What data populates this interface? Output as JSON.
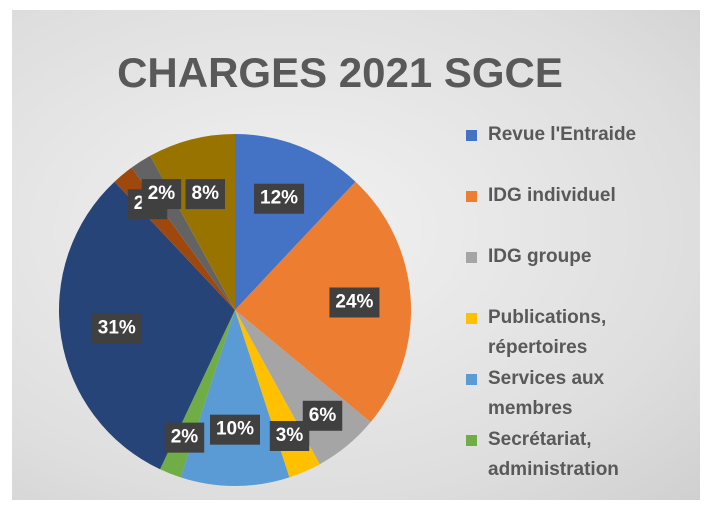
{
  "chart_data": {
    "type": "pie",
    "title": "CHARGES 2021 SGCE",
    "categories": [
      "Revue l'Entraide",
      "IDG individuel",
      "IDG groupe",
      "Publications, répertoires",
      "Services aux membres",
      "Secrétariat, administration",
      null,
      null,
      null,
      null
    ],
    "values": [
      12,
      24,
      6,
      3,
      10,
      2,
      31,
      2,
      2,
      8
    ],
    "value_labels": [
      "12%",
      "24%",
      "6%",
      "3%",
      "10%",
      "2%",
      "31%",
      "2%",
      "2%",
      "8%"
    ],
    "colors": [
      "#4472c4",
      "#ed7d31",
      "#a5a5a5",
      "#ffc000",
      "#5b9bd5",
      "#70ad47",
      "#264478",
      "#9e480e",
      "#636363",
      "#997300"
    ],
    "legend": "right"
  }
}
